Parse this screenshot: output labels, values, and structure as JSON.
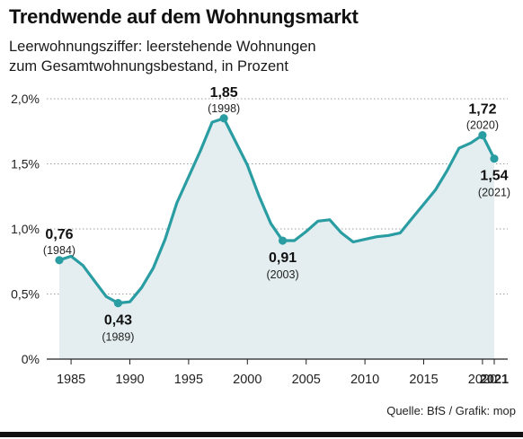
{
  "title": "Trendwende auf dem Wohnungsmarkt",
  "subtitle_line1": "Leerwohnungsziffer: leerstehende Wohnungen",
  "subtitle_line2": "zum Gesamtwohnungsbestand, in Prozent",
  "source": "Quelle: BfS / Grafik: mop",
  "colors": {
    "line": "#2a9da3",
    "area": "#e4eef0",
    "axis": "#222222"
  },
  "chart_data": {
    "type": "area",
    "title": "Trendwende auf dem Wohnungsmarkt",
    "subtitle": "Leerwohnungsziffer: leerstehende Wohnungen zum Gesamtwohnungsbestand, in Prozent",
    "xlabel": "",
    "ylabel": "",
    "xlim": [
      1984,
      2021
    ],
    "ylim": [
      0,
      2.0
    ],
    "grid": "horizontal dotted",
    "x_ticks": [
      1985,
      1990,
      1995,
      2000,
      2005,
      2010,
      2015,
      2020,
      2021
    ],
    "x_tick_labels": [
      "1985",
      "1990",
      "1995",
      "2000",
      "2005",
      "2010",
      "2015",
      "2020",
      "2021"
    ],
    "y_ticks": [
      0,
      0.5,
      1.0,
      1.5,
      2.0
    ],
    "y_tick_labels": [
      "0%",
      "0,5%",
      "1,0%",
      "1,5%",
      "2,0%"
    ],
    "series": [
      {
        "values": [
          {
            "x": 1984,
            "y": 0.76
          },
          {
            "x": 1985,
            "y": 0.79
          },
          {
            "x": 1986,
            "y": 0.72
          },
          {
            "x": 1987,
            "y": 0.6
          },
          {
            "x": 1988,
            "y": 0.48
          },
          {
            "x": 1989,
            "y": 0.43
          },
          {
            "x": 1990,
            "y": 0.44
          },
          {
            "x": 1991,
            "y": 0.55
          },
          {
            "x": 1992,
            "y": 0.7
          },
          {
            "x": 1993,
            "y": 0.92
          },
          {
            "x": 1994,
            "y": 1.2
          },
          {
            "x": 1995,
            "y": 1.4
          },
          {
            "x": 1996,
            "y": 1.6
          },
          {
            "x": 1997,
            "y": 1.82
          },
          {
            "x": 1998,
            "y": 1.85
          },
          {
            "x": 1999,
            "y": 1.67
          },
          {
            "x": 2000,
            "y": 1.49
          },
          {
            "x": 2001,
            "y": 1.25
          },
          {
            "x": 2002,
            "y": 1.04
          },
          {
            "x": 2003,
            "y": 0.91
          },
          {
            "x": 2004,
            "y": 0.91
          },
          {
            "x": 2005,
            "y": 0.98
          },
          {
            "x": 2006,
            "y": 1.06
          },
          {
            "x": 2007,
            "y": 1.07
          },
          {
            "x": 2008,
            "y": 0.97
          },
          {
            "x": 2009,
            "y": 0.9
          },
          {
            "x": 2010,
            "y": 0.92
          },
          {
            "x": 2011,
            "y": 0.94
          },
          {
            "x": 2012,
            "y": 0.95
          },
          {
            "x": 2013,
            "y": 0.97
          },
          {
            "x": 2014,
            "y": 1.08
          },
          {
            "x": 2015,
            "y": 1.19
          },
          {
            "x": 2016,
            "y": 1.3
          },
          {
            "x": 2017,
            "y": 1.45
          },
          {
            "x": 2018,
            "y": 1.62
          },
          {
            "x": 2019,
            "y": 1.66
          },
          {
            "x": 2020,
            "y": 1.72
          },
          {
            "x": 2021,
            "y": 1.54
          }
        ]
      }
    ],
    "annotations": [
      {
        "x": 1984,
        "y": 0.76,
        "value_label": "0,76",
        "year_label": "(1984)",
        "position": "above"
      },
      {
        "x": 1989,
        "y": 0.43,
        "value_label": "0,43",
        "year_label": "(1989)",
        "position": "below"
      },
      {
        "x": 1998,
        "y": 1.85,
        "value_label": "1,85",
        "year_label": "(1998)",
        "position": "above"
      },
      {
        "x": 2003,
        "y": 0.91,
        "value_label": "0,91",
        "year_label": "(2003)",
        "position": "below"
      },
      {
        "x": 2020,
        "y": 1.72,
        "value_label": "1,72",
        "year_label": "(2020)",
        "position": "above"
      },
      {
        "x": 2021,
        "y": 1.54,
        "value_label": "1,54",
        "year_label": "(2021)",
        "position": "below"
      }
    ]
  }
}
